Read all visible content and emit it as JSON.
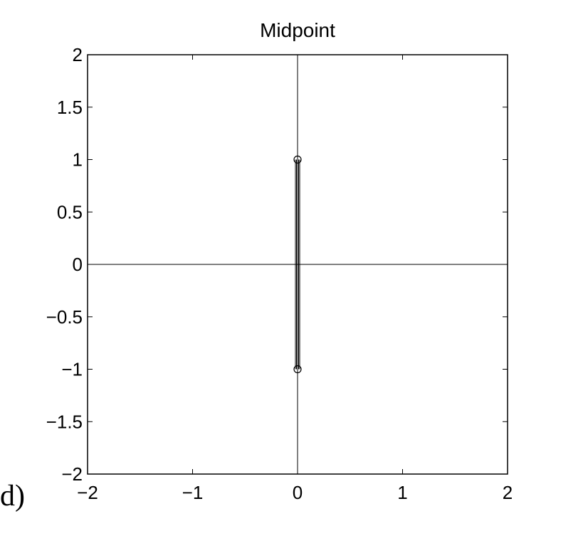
{
  "panel_label": "d)",
  "chart_data": {
    "type": "line",
    "title": "Midpoint",
    "xlabel": "",
    "ylabel": "",
    "xlim": [
      -2,
      2
    ],
    "ylim": [
      -2,
      2
    ],
    "grid": false,
    "x_ticks": [
      -2,
      -1,
      0,
      1,
      2
    ],
    "x_tick_labels": [
      "−2",
      "−1",
      "0",
      "1",
      "2"
    ],
    "y_ticks": [
      2,
      1.5,
      1,
      0.5,
      0,
      -0.5,
      -1,
      -1.5,
      -2
    ],
    "y_tick_labels": [
      "2",
      "1.5",
      "1",
      "0.5",
      "0",
      "−0.5",
      "−1",
      "−1.5",
      "−2"
    ],
    "reference_lines": {
      "x": 0,
      "y": 0
    },
    "series": [
      {
        "x": [
          0,
          0
        ],
        "y": [
          1,
          -1
        ]
      }
    ],
    "markers": [
      {
        "x": 0,
        "y": 1,
        "shape": "circle"
      },
      {
        "x": 0,
        "y": -1,
        "shape": "circle"
      }
    ],
    "colors": {
      "line": "#000000",
      "axes": "#000000",
      "background": "#ffffff"
    }
  }
}
